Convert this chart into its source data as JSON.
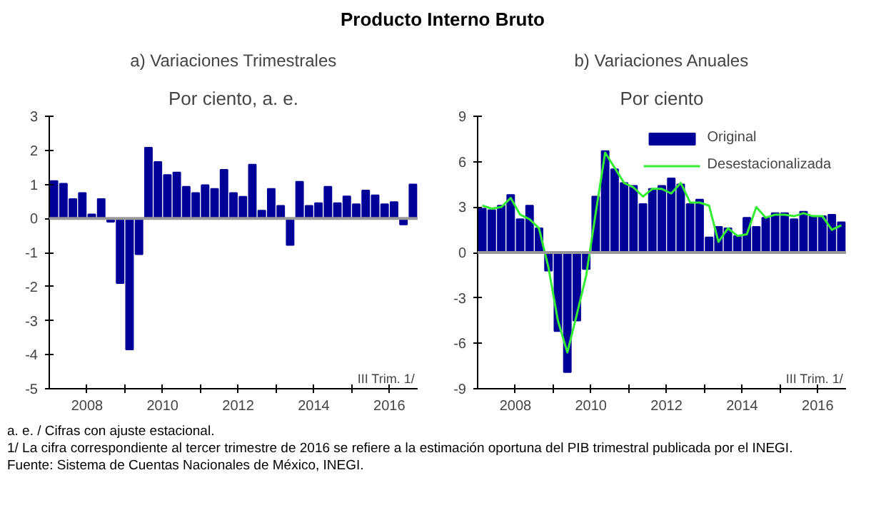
{
  "chart_data": [
    {
      "type": "bar",
      "title": "a) Variaciones Trimestrales",
      "subtitle": "Por ciento, a. e.",
      "x": [
        2007.125,
        2007.375,
        2007.625,
        2007.875,
        2008.125,
        2008.375,
        2008.625,
        2008.875,
        2009.125,
        2009.375,
        2009.625,
        2009.875,
        2010.125,
        2010.375,
        2010.625,
        2010.875,
        2011.125,
        2011.375,
        2011.625,
        2011.875,
        2012.125,
        2012.375,
        2012.625,
        2012.875,
        2013.125,
        2013.375,
        2013.625,
        2013.875,
        2014.125,
        2014.375,
        2014.625,
        2014.875,
        2015.125,
        2015.375,
        2015.625,
        2015.875,
        2016.125,
        2016.375,
        2016.625
      ],
      "series": [
        {
          "color": "#000099",
          "values": [
            1.1,
            1.02,
            0.57,
            0.75,
            0.12,
            0.57,
            -0.1,
            -1.9,
            -3.85,
            -1.05,
            2.08,
            1.66,
            1.28,
            1.35,
            0.93,
            0.75,
            0.98,
            0.87,
            1.43,
            0.75,
            0.64,
            1.58,
            0.23,
            0.87,
            0.37,
            -0.78,
            1.08,
            0.37,
            0.45,
            0.93,
            0.45,
            0.65,
            0.42,
            0.82,
            0.68,
            0.42,
            0.48,
            -0.18,
            1.0
          ]
        }
      ],
      "xlim": [
        2007,
        2016.75
      ],
      "xticks": [
        2008,
        {
          "value": 2009,
          "label": null
        },
        2010,
        {
          "value": 2011,
          "label": null
        },
        2012,
        {
          "value": 2013,
          "label": null
        },
        2014,
        {
          "value": 2015,
          "label": null
        },
        2016
      ],
      "ylim": [
        -5,
        3
      ],
      "yticks": [
        -5,
        -4,
        -3,
        -2,
        -1,
        0,
        1,
        2,
        3
      ],
      "ref_lines": [
        {
          "axis": "y",
          "value": 0,
          "color": "#999999"
        }
      ],
      "grid": false,
      "legend": false,
      "annotations": [
        "Producto Interno Bruto",
        "III Trim. 1/",
        "a. e. / Cifras con ajuste estacional.",
        "1/ La cifra correspondiente al tercer trimestre de 2016 se refiere a la estimación oportuna del PIB trimestral publicada por el INEGI.",
        "Fuente: Sistema de Cuentas Nacionales de México, INEGI."
      ]
    },
    {
      "type": "bar",
      "title": "b) Variaciones Anuales",
      "subtitle": "Por ciento",
      "x": [
        2007.125,
        2007.375,
        2007.625,
        2007.875,
        2008.125,
        2008.375,
        2008.625,
        2008.875,
        2009.125,
        2009.375,
        2009.625,
        2009.875,
        2010.125,
        2010.375,
        2010.625,
        2010.875,
        2011.125,
        2011.375,
        2011.625,
        2011.875,
        2012.125,
        2012.375,
        2012.625,
        2012.875,
        2013.125,
        2013.375,
        2013.625,
        2013.875,
        2014.125,
        2014.375,
        2014.625,
        2014.875,
        2015.125,
        2015.375,
        2015.625,
        2015.875,
        2016.125,
        2016.375,
        2016.625
      ],
      "series": [
        {
          "name": "Original",
          "type": "bar",
          "color": "#000099",
          "values": [
            2.9,
            2.8,
            3.1,
            3.8,
            2.2,
            3.1,
            1.6,
            -1.2,
            -5.2,
            -7.9,
            -4.5,
            -1.1,
            3.7,
            6.7,
            5.5,
            4.6,
            4.4,
            3.2,
            4.2,
            4.4,
            4.9,
            4.5,
            3.2,
            3.5,
            1.0,
            1.7,
            1.6,
            1.1,
            2.3,
            1.7,
            2.3,
            2.6,
            2.6,
            2.2,
            2.7,
            2.4,
            2.4,
            2.5,
            2.0
          ]
        },
        {
          "name": "Desestacionalizada",
          "type": "line",
          "color": "#33ee33",
          "values": [
            3.1,
            2.9,
            3.0,
            3.6,
            2.5,
            2.2,
            1.6,
            -1.0,
            -4.5,
            -6.6,
            -4.1,
            -1.5,
            2.6,
            6.6,
            5.6,
            4.6,
            4.3,
            3.7,
            4.2,
            4.2,
            3.9,
            4.6,
            3.3,
            3.3,
            3.1,
            0.7,
            1.6,
            1.1,
            1.2,
            3.0,
            2.3,
            2.5,
            2.5,
            2.4,
            2.6,
            2.4,
            2.4,
            1.5,
            1.8
          ]
        }
      ],
      "xlim": [
        2007,
        2016.75
      ],
      "xticks": [
        2008,
        {
          "value": 2009,
          "label": null
        },
        2010,
        {
          "value": 2011,
          "label": null
        },
        2012,
        {
          "value": 2013,
          "label": null
        },
        2014,
        {
          "value": 2015,
          "label": null
        },
        2016
      ],
      "ylim": [
        -9,
        9
      ],
      "yticks": [
        -9,
        -6,
        -3,
        0,
        3,
        6,
        9
      ],
      "ref_lines": [
        {
          "axis": "y",
          "value": 0,
          "color": "#999999"
        }
      ],
      "grid": false,
      "legend": "top right",
      "line_style": "solid",
      "marker": "none",
      "annotations": [
        "III Trim. 1/"
      ]
    }
  ]
}
